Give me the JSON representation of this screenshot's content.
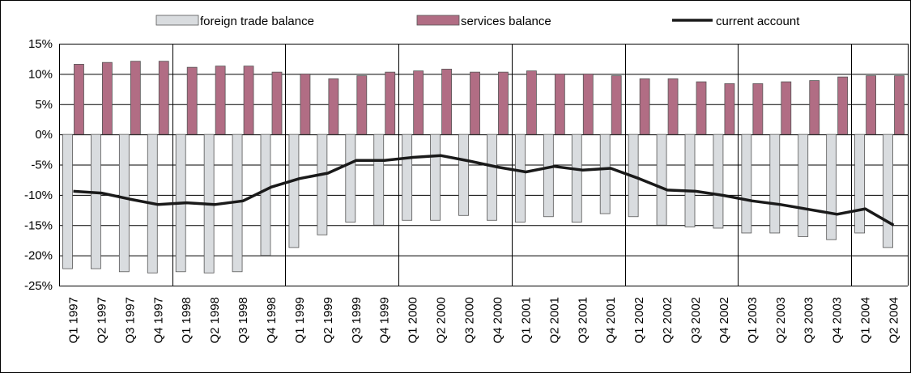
{
  "chart_data": {
    "type": "bar",
    "title": "",
    "xlabel": "",
    "ylabel": "",
    "y_unit": "%",
    "ylim": [
      -25,
      15
    ],
    "y_ticks": [
      15,
      10,
      5,
      0,
      -5,
      -10,
      -15,
      -20,
      -25
    ],
    "y_tick_labels": [
      "15%",
      "10%",
      "5%",
      "0%",
      "-5%",
      "-10%",
      "-15%",
      "-20%",
      "-25%"
    ],
    "grid": true,
    "legend_position": "top",
    "categories": [
      "Q1 1997",
      "Q2 1997",
      "Q3 1997",
      "Q4 1997",
      "Q1 1998",
      "Q2 1998",
      "Q3 1998",
      "Q4 1998",
      "Q1 1999",
      "Q2 1999",
      "Q3 1999",
      "Q4 1999",
      "Q1 2000",
      "Q2 2000",
      "Q3 2000",
      "Q4 2000",
      "Q1 2001",
      "Q2 2001",
      "Q3 2001",
      "Q4 2001",
      "Q1 2002",
      "Q2 2002",
      "Q3 2002",
      "Q4 2002",
      "Q1 2003",
      "Q2 2003",
      "Q3 2003",
      "Q4 2003",
      "Q1 2004",
      "Q2 2004"
    ],
    "series": [
      {
        "name": "foreign trade balance",
        "type": "bar",
        "color": "#d9dcdf",
        "values": [
          -22.2,
          -22.2,
          -22.7,
          -22.9,
          -22.7,
          -22.9,
          -22.7,
          -20.0,
          -18.7,
          -16.6,
          -14.5,
          -15.0,
          -14.2,
          -14.2,
          -13.4,
          -14.2,
          -14.5,
          -13.6,
          -14.5,
          -13.1,
          -13.6,
          -15.0,
          -15.3,
          -15.5,
          -16.3,
          -16.3,
          -16.9,
          -17.4,
          -16.3,
          -18.7
        ]
      },
      {
        "name": "services balance",
        "type": "bar",
        "color": "#b16d84",
        "values": [
          11.6,
          11.9,
          12.1,
          12.1,
          11.1,
          11.3,
          11.3,
          10.3,
          10.0,
          9.2,
          9.7,
          10.3,
          10.5,
          10.8,
          10.3,
          10.3,
          10.5,
          10.0,
          10.0,
          9.7,
          9.2,
          9.2,
          8.7,
          8.4,
          8.4,
          8.7,
          8.9,
          9.5,
          9.7,
          9.7
        ]
      },
      {
        "name": "current account",
        "type": "line",
        "color": "#1a1a1a",
        "values": [
          -9.4,
          -9.7,
          -10.7,
          -11.6,
          -11.3,
          -11.6,
          -11.0,
          -8.7,
          -7.3,
          -6.4,
          -4.3,
          -4.3,
          -3.8,
          -3.5,
          -4.4,
          -5.4,
          -6.2,
          -5.3,
          -5.9,
          -5.6,
          -7.3,
          -9.2,
          -9.4,
          -10.1,
          -11.0,
          -11.6,
          -12.4,
          -13.2,
          -12.3,
          -15.0
        ]
      }
    ],
    "vertical_dividers_after_index": [
      3,
      7,
      11,
      15,
      19,
      23,
      27
    ]
  }
}
